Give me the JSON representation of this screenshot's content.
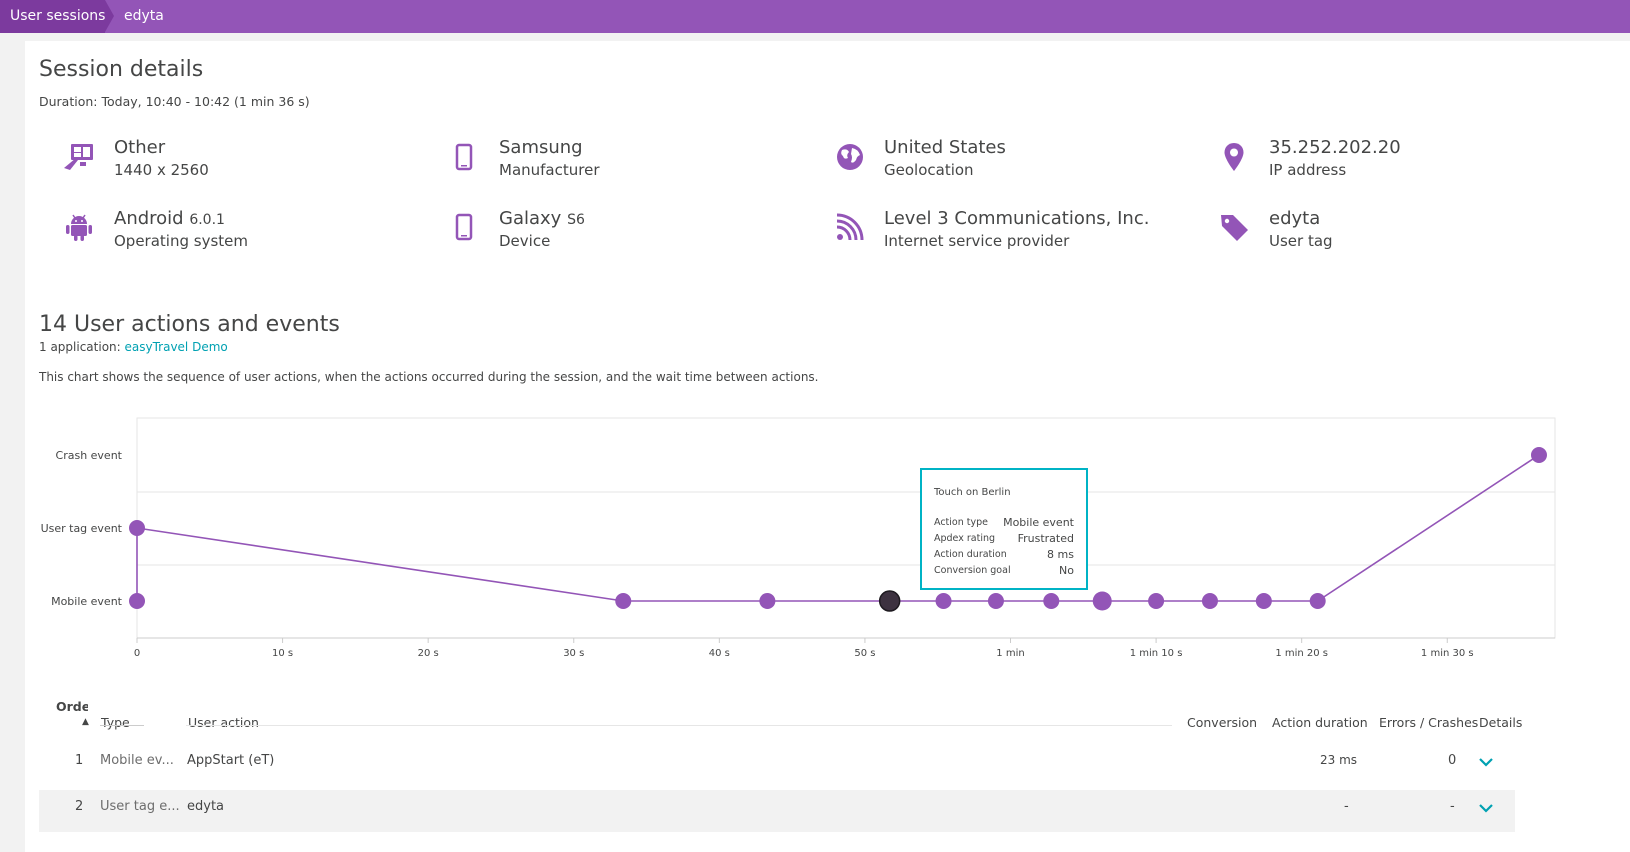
{
  "breadcrumb": {
    "items": [
      "User sessions",
      "edyta"
    ]
  },
  "session": {
    "title": "Session details",
    "duration": "Duration: Today, 10:40 - 10:42 (1 min 36 s)"
  },
  "info": [
    {
      "icon": "display-resolution-icon",
      "value": "Other",
      "label": "1440 x 2560"
    },
    {
      "icon": "mobile-device-icon",
      "value": "Samsung",
      "label": "Manufacturer"
    },
    {
      "icon": "globe-icon",
      "value": "United States",
      "label": "Geolocation"
    },
    {
      "icon": "location-pin-icon",
      "value": "35.252.202.20",
      "label": "IP address"
    },
    {
      "icon": "android-icon",
      "value": "Android",
      "value_small": "6.0.1",
      "label": "Operating system"
    },
    {
      "icon": "mobile-device-icon",
      "value": "Galaxy",
      "value_small": "S6",
      "label": "Device"
    },
    {
      "icon": "network-signal-icon",
      "value": "Level 3 Communications, Inc.",
      "label": "Internet service provider"
    },
    {
      "icon": "tag-icon",
      "value": "edyta",
      "label": "User tag"
    }
  ],
  "actions": {
    "title": "14 User actions and events",
    "app_prefix": "1 application: ",
    "app_link": "easyTravel Demo",
    "description": "This chart shows the sequence of user actions, when the actions occurred during the session, and the wait time between actions."
  },
  "colors": {
    "accent": "#9355b7",
    "header": "#7c3a9e",
    "link": "#00a1b2",
    "tooltip_border": "#00b3c5",
    "point": "#9355b7",
    "selected_point": "#3d3240"
  },
  "chart_data": {
    "type": "line",
    "y_categories": [
      "Mobile event",
      "User tag event",
      "Crash event"
    ],
    "x_ticks": [
      {
        "v": 0,
        "label": "0"
      },
      {
        "v": 10,
        "label": "10 s"
      },
      {
        "v": 20,
        "label": "20 s"
      },
      {
        "v": 30,
        "label": "30 s"
      },
      {
        "v": 40,
        "label": "40 s"
      },
      {
        "v": 50,
        "label": "50 s"
      },
      {
        "v": 60,
        "label": "1 min"
      },
      {
        "v": 70,
        "label": "1 min 10 s"
      },
      {
        "v": 80,
        "label": "1 min 20 s"
      },
      {
        "v": 90,
        "label": "1 min 30 s"
      }
    ],
    "xlim": [
      0,
      97.4
    ],
    "sequence": [
      {
        "t": 0,
        "cat": 0
      },
      {
        "t": 0,
        "cat": 1
      },
      {
        "t": 33.4,
        "cat": 0
      },
      {
        "t": 43.3,
        "cat": 0
      },
      {
        "t": 51.7,
        "cat": 0,
        "selected": true
      },
      {
        "t": 55.4,
        "cat": 0
      },
      {
        "t": 59.0,
        "cat": 0
      },
      {
        "t": 62.8,
        "cat": 0
      },
      {
        "t": 66.3,
        "cat": 0,
        "large": true
      },
      {
        "t": 70.0,
        "cat": 0
      },
      {
        "t": 73.7,
        "cat": 0
      },
      {
        "t": 77.4,
        "cat": 0
      },
      {
        "t": 81.1,
        "cat": 0
      },
      {
        "t": 96.3,
        "cat": 2
      }
    ],
    "tooltip": {
      "title": "Touch on Berlin",
      "rows": [
        {
          "k": "Action type",
          "v": "Mobile event"
        },
        {
          "k": "Apdex rating",
          "v": "Frustrated"
        },
        {
          "k": "Action duration",
          "v": "8 ms"
        },
        {
          "k": "Conversion goal",
          "v": "No"
        }
      ]
    }
  },
  "table": {
    "headers": {
      "order": "Order",
      "type": "Type",
      "action": "User action",
      "conversion": "Conversion",
      "duration": "Action duration",
      "errors": "Errors / Crashes",
      "details": "Details"
    },
    "rows": [
      {
        "order": "1",
        "type": "Mobile ev...",
        "action": "AppStart (eT)",
        "duration": "23 ms",
        "errors": "0"
      },
      {
        "order": "2",
        "type": "User tag e...",
        "action": "edyta",
        "duration": "-",
        "errors": "-"
      }
    ]
  }
}
